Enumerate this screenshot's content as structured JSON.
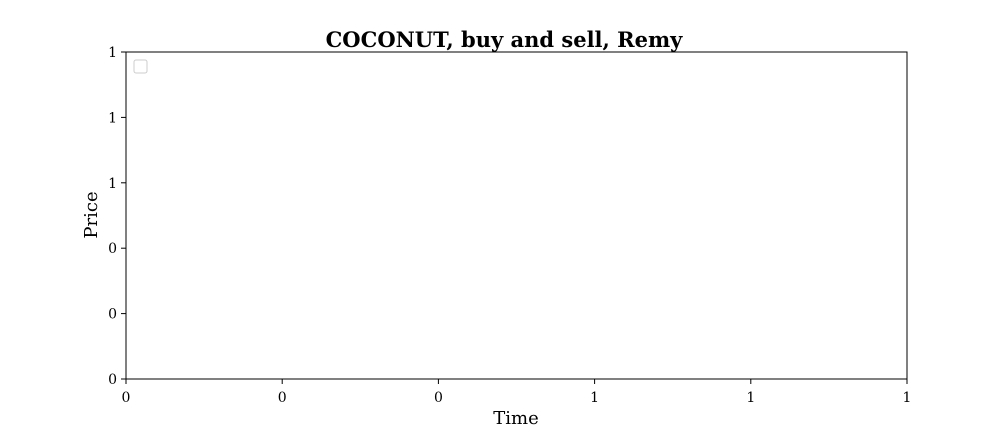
{
  "chart_data": {
    "type": "line",
    "title": "COCONUT, buy and sell, Remy",
    "xlabel": "Time",
    "ylabel": "Price",
    "x_tick_labels": [
      "0",
      "0",
      "0",
      "1",
      "1",
      "1"
    ],
    "y_tick_labels": [
      "0",
      "0",
      "0",
      "1",
      "1",
      "1"
    ],
    "series": [],
    "legend": {
      "placement": "top-left",
      "entries": []
    },
    "grid": false
  }
}
